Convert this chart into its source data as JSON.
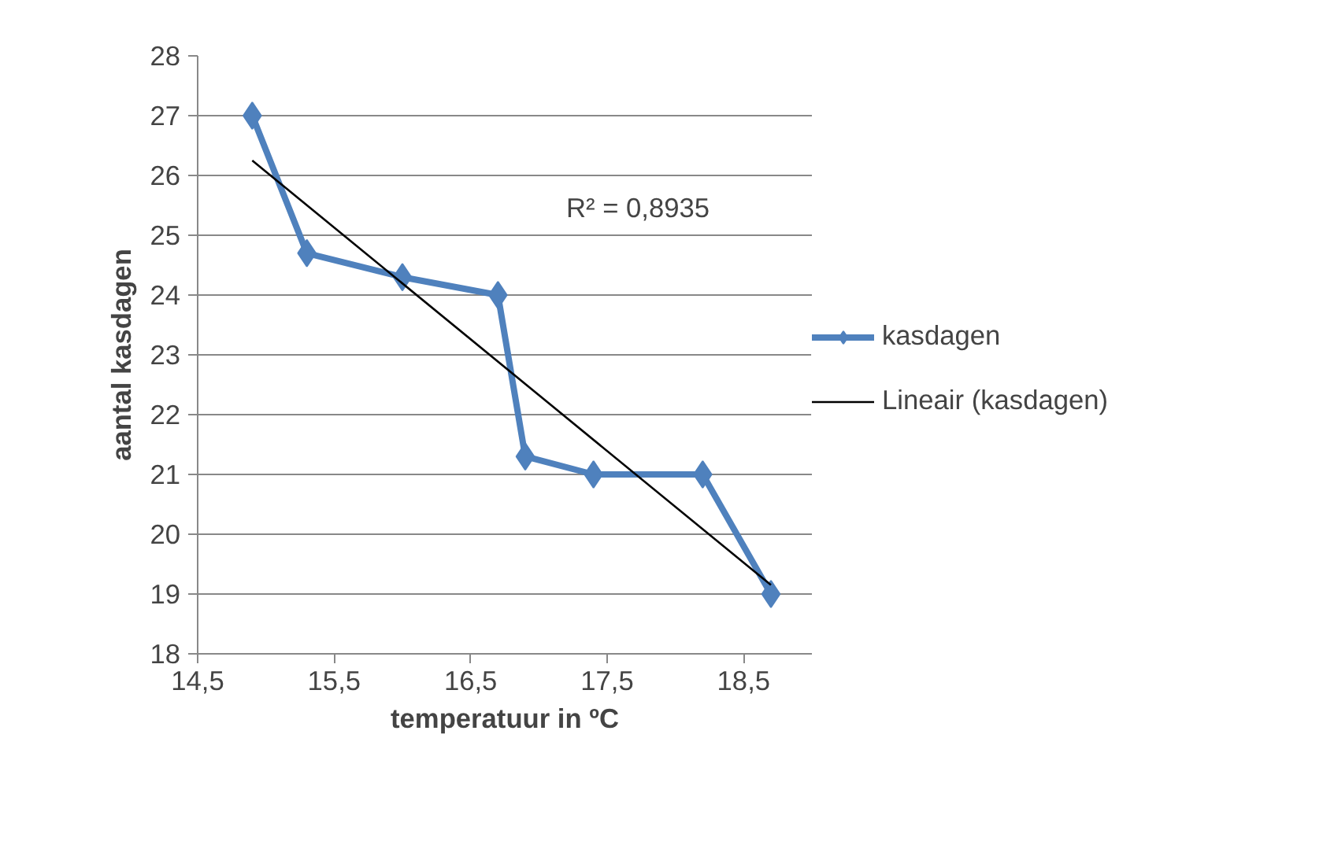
{
  "chart_data": {
    "type": "line",
    "xlabel": "temperatuur in ºC",
    "ylabel": "aantal kasdagen",
    "x": [
      14.9,
      15.3,
      16.0,
      16.7,
      16.9,
      17.4,
      18.2,
      18.7
    ],
    "series": [
      {
        "name": "kasdagen",
        "color": "#4f81bd",
        "values": [
          27,
          24.7,
          24.3,
          24.0,
          21.3,
          21.0,
          21.0,
          19.0
        ],
        "marker": "diamond"
      },
      {
        "name": "Lineair (kasdagen)",
        "color": "#000000",
        "type": "line",
        "x": [
          14.9,
          18.7
        ],
        "values": [
          26.25,
          19.15
        ],
        "marker": "none"
      }
    ],
    "xlim": [
      14.5,
      19.0
    ],
    "xticks": [
      {
        "value": 14.5,
        "label": "14,5"
      },
      {
        "value": 15.5,
        "label": "15,5"
      },
      {
        "value": 16.5,
        "label": "16,5"
      },
      {
        "value": 17.5,
        "label": "17,5"
      },
      {
        "value": 18.5,
        "label": "18,5"
      }
    ],
    "ylim": [
      18,
      28
    ],
    "yticks": [
      18,
      19,
      20,
      21,
      22,
      23,
      24,
      25,
      26,
      27,
      28
    ],
    "grid": "y",
    "legend": "right",
    "annotations": [
      "R² = 0,8935"
    ]
  }
}
